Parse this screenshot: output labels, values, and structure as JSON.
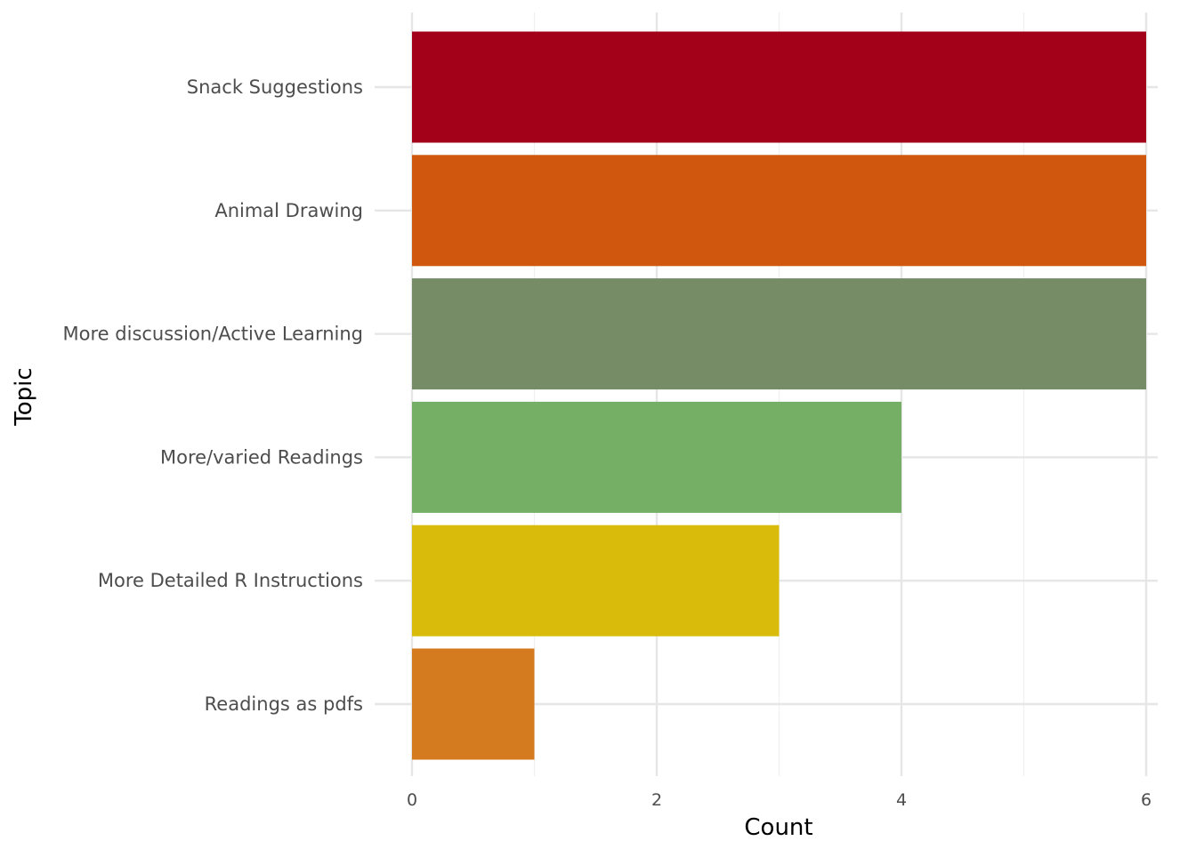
{
  "chart_data": {
    "type": "bar",
    "orientation": "horizontal",
    "categories": [
      "Snack Suggestions",
      "Animal Drawing",
      "More discussion/Active Learning",
      "More/varied Readings",
      "More Detailed R Instructions",
      "Readings as pdfs"
    ],
    "values": [
      6,
      6,
      6,
      4,
      3,
      1
    ],
    "colors": [
      "#A3001A",
      "#D0580E",
      "#758C66",
      "#74AF65",
      "#D9BB0C",
      "#D47B20"
    ],
    "xlabel": "Count",
    "ylabel": "Topic",
    "xlim": [
      0,
      6
    ],
    "x_ticks": [
      0,
      2,
      4,
      6
    ],
    "x_tick_labels": [
      "0",
      "2",
      "4",
      "6"
    ],
    "grid": true,
    "legend": "none"
  }
}
